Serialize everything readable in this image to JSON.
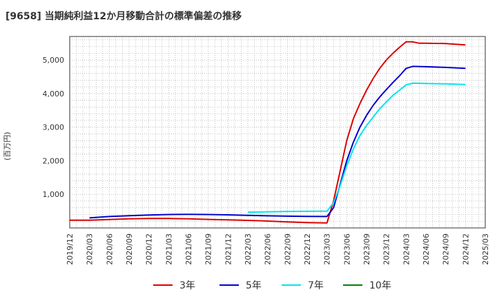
{
  "title": "[9658]  当期純利益12か月移動合計の標準偏差の推移",
  "chart_data": {
    "type": "line",
    "title": "[9658]  当期純利益12か月移動合計の標準偏差の推移",
    "ylabel": "(百万円)",
    "xlabel": "",
    "ylim": [
      0,
      5700
    ],
    "yticks": [
      1000,
      2000,
      3000,
      4000,
      5000
    ],
    "ytick_labels": [
      "1,000",
      "2,000",
      "3,000",
      "4,000",
      "5,000"
    ],
    "xlim": [
      "2019/12",
      "2025/03"
    ],
    "xtick_labels": [
      "2019/12",
      "2020/03",
      "2020/06",
      "2020/09",
      "2020/12",
      "2021/03",
      "2021/06",
      "2021/09",
      "2021/12",
      "2022/03",
      "2022/06",
      "2022/09",
      "2022/12",
      "2023/03",
      "2023/06",
      "2023/09",
      "2023/12",
      "2024/03",
      "2024/06",
      "2024/09",
      "2024/12",
      "2025/03"
    ],
    "grid": true,
    "series": [
      {
        "name": "3年",
        "color": "#dd0000",
        "x": [
          "2019/12",
          "2020/03",
          "2020/06",
          "2020/09",
          "2020/12",
          "2021/03",
          "2021/06",
          "2021/09",
          "2021/12",
          "2022/03",
          "2022/06",
          "2022/09",
          "2022/12",
          "2023/03",
          "2023/04",
          "2023/05",
          "2023/06",
          "2023/07",
          "2023/08",
          "2023/09",
          "2023/10",
          "2023/11",
          "2023/12",
          "2024/01",
          "2024/02",
          "2024/03",
          "2024/04",
          "2024/05",
          "2024/06",
          "2024/09",
          "2024/12"
        ],
        "values": [
          230,
          230,
          250,
          270,
          280,
          280,
          270,
          255,
          240,
          225,
          205,
          180,
          160,
          150,
          800,
          1700,
          2600,
          3250,
          3700,
          4100,
          4450,
          4750,
          5000,
          5200,
          5380,
          5540,
          5540,
          5500,
          5500,
          5490,
          5450
        ]
      },
      {
        "name": "5年",
        "color": "#0000cc",
        "x": [
          "2020/03",
          "2020/06",
          "2020/09",
          "2020/12",
          "2021/03",
          "2021/06",
          "2021/09",
          "2021/12",
          "2022/03",
          "2022/06",
          "2022/09",
          "2022/12",
          "2023/03",
          "2023/04",
          "2023/05",
          "2023/06",
          "2023/07",
          "2023/08",
          "2023/09",
          "2023/10",
          "2023/11",
          "2023/12",
          "2024/01",
          "2024/02",
          "2024/03",
          "2024/04",
          "2024/06",
          "2024/09",
          "2024/12"
        ],
        "values": [
          300,
          340,
          365,
          385,
          400,
          405,
          400,
          390,
          375,
          360,
          350,
          345,
          340,
          600,
          1300,
          2000,
          2550,
          3000,
          3350,
          3650,
          3900,
          4120,
          4330,
          4530,
          4750,
          4810,
          4800,
          4780,
          4750
        ]
      },
      {
        "name": "7年",
        "color": "#00e5ee",
        "x": [
          "2022/03",
          "2022/06",
          "2022/09",
          "2022/12",
          "2023/03",
          "2023/04",
          "2023/05",
          "2023/06",
          "2023/07",
          "2023/08",
          "2023/09",
          "2023/10",
          "2023/11",
          "2023/12",
          "2024/01",
          "2024/02",
          "2024/03",
          "2024/04",
          "2024/06",
          "2024/09",
          "2024/12"
        ],
        "values": [
          470,
          480,
          490,
          495,
          500,
          750,
          1250,
          1850,
          2350,
          2750,
          3050,
          3300,
          3550,
          3750,
          3950,
          4100,
          4260,
          4310,
          4300,
          4290,
          4270
        ]
      },
      {
        "name": "10年",
        "color": "#008000",
        "x": [],
        "values": []
      }
    ]
  }
}
